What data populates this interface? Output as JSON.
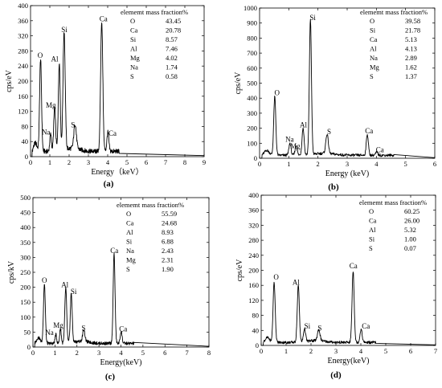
{
  "figure": {
    "panels": [
      {
        "label": "(a)",
        "table_header": "elememt mass fraction%",
        "xlabel": "Energy（keV）",
        "ylabel": "cps/eV",
        "xticks": [
          "0",
          "1",
          "2",
          "3",
          "4",
          "5",
          "6",
          "7",
          "8",
          "9"
        ],
        "yticks": [
          "0",
          "40",
          "80",
          "120",
          "160",
          "200",
          "240",
          "280",
          "320",
          "360",
          "400"
        ]
      },
      {
        "label": "(b)",
        "table_header": "elememt mass fraction%",
        "xlabel": "Energy (keV)",
        "ylabel": "cps/eV",
        "xticks": [
          "0",
          "1",
          "2",
          "3",
          "4",
          "5",
          "6"
        ],
        "yticks": [
          "0",
          "100",
          "200",
          "300",
          "400",
          "500",
          "600",
          "700",
          "800",
          "900",
          "1000"
        ]
      },
      {
        "label": "(c)",
        "table_header": "elememt mass fraction%",
        "xlabel": "Energy(keV)",
        "ylabel": "cps/kV",
        "xticks": [
          "0",
          "1",
          "2",
          "3",
          "4",
          "5",
          "6",
          "7",
          "8"
        ],
        "yticks": [
          "0",
          "50",
          "100",
          "150",
          "200",
          "250",
          "300",
          "350",
          "400",
          "450",
          "500"
        ]
      },
      {
        "label": "(d)",
        "table_header": "elememt mass fraction%",
        "xlabel": "Energy(keV)",
        "ylabel": "cps/eV",
        "xticks": [
          "0",
          "1",
          "2",
          "3",
          "4",
          "5",
          "6",
          "7"
        ],
        "yticks": [
          "0",
          "40",
          "80",
          "120",
          "160",
          "200",
          "240",
          "280",
          "320",
          "360",
          "400"
        ]
      }
    ]
  },
  "chart_data": [
    {
      "type": "line",
      "xlim": [
        0,
        9
      ],
      "ylim": [
        0,
        400
      ],
      "xlabel": "Energy（keV）",
      "ylabel": "cps/eV",
      "composition_table": {
        "header": "elememt mass fraction%",
        "rows": [
          [
            "O",
            "43.45"
          ],
          [
            "Ca",
            "20.78"
          ],
          [
            "Si",
            "8.57"
          ],
          [
            "Al",
            "7.46"
          ],
          [
            "Mg",
            "4.02"
          ],
          [
            "Na",
            "1.74"
          ],
          [
            "S",
            "0.58"
          ]
        ]
      },
      "peaks": [
        {
          "element": "O",
          "x": 0.52,
          "y": 245,
          "w": 0.07
        },
        {
          "element": "Na",
          "x": 1.04,
          "y": 45,
          "w": 0.06
        },
        {
          "element": "Mg",
          "x": 1.25,
          "y": 115,
          "w": 0.07
        },
        {
          "element": "Al",
          "x": 1.49,
          "y": 235,
          "w": 0.07
        },
        {
          "element": "Si",
          "x": 1.74,
          "y": 315,
          "w": 0.08
        },
        {
          "element": "S",
          "x": 2.31,
          "y": 65,
          "w": 0.09
        },
        {
          "element": "Ca",
          "x": 3.69,
          "y": 345,
          "w": 0.08
        },
        {
          "element": "Ca",
          "x": 4.01,
          "y": 50,
          "w": 0.07
        }
      ],
      "baseline": 14,
      "peak_labels": [
        {
          "text": "O",
          "x": 0.5,
          "y": 262
        },
        {
          "text": "Na",
          "x": 0.8,
          "y": 58
        },
        {
          "text": "Mg",
          "x": 1.05,
          "y": 130
        },
        {
          "text": "Al",
          "x": 1.25,
          "y": 252
        },
        {
          "text": "Si",
          "x": 1.75,
          "y": 330
        },
        {
          "text": "S",
          "x": 2.2,
          "y": 78
        },
        {
          "text": "Ca",
          "x": 3.78,
          "y": 358
        },
        {
          "text": "Ca",
          "x": 4.25,
          "y": 55
        }
      ]
    },
    {
      "type": "line",
      "xlim": [
        0,
        6
      ],
      "ylim": [
        0,
        1000
      ],
      "xlabel": "Energy (keV)",
      "ylabel": "cps/eV",
      "composition_table": {
        "header": "elememt mass fraction%",
        "rows": [
          [
            "O",
            "39.58"
          ],
          [
            "Si",
            "21.78"
          ],
          [
            "Ca",
            "5.13"
          ],
          [
            "Al",
            "4.13"
          ],
          [
            "Na",
            "2.89"
          ],
          [
            "Mg",
            "1.62"
          ],
          [
            "S",
            "1.37"
          ]
        ]
      },
      "peaks": [
        {
          "element": "O",
          "x": 0.52,
          "y": 390,
          "w": 0.05
        },
        {
          "element": "Na",
          "x": 1.04,
          "y": 80,
          "w": 0.05
        },
        {
          "element": "Mg",
          "x": 1.25,
          "y": 65,
          "w": 0.05
        },
        {
          "element": "Al",
          "x": 1.49,
          "y": 180,
          "w": 0.05
        },
        {
          "element": "Si",
          "x": 1.74,
          "y": 900,
          "w": 0.05
        },
        {
          "element": "S",
          "x": 2.31,
          "y": 130,
          "w": 0.06
        },
        {
          "element": "Ca",
          "x": 3.69,
          "y": 140,
          "w": 0.05
        },
        {
          "element": "Ca",
          "x": 4.01,
          "y": 20,
          "w": 0.05
        }
      ],
      "baseline": 20,
      "peak_labels": [
        {
          "text": "O",
          "x": 0.6,
          "y": 420
        },
        {
          "text": "Na",
          "x": 1.03,
          "y": 110
        },
        {
          "text": "Mg",
          "x": 1.22,
          "y": 65
        },
        {
          "text": "Al",
          "x": 1.5,
          "y": 205
        },
        {
          "text": "Si",
          "x": 1.82,
          "y": 920
        },
        {
          "text": "S",
          "x": 2.38,
          "y": 160
        },
        {
          "text": "Ca",
          "x": 3.75,
          "y": 165
        },
        {
          "text": "Ca",
          "x": 4.12,
          "y": 40
        }
      ]
    },
    {
      "type": "line",
      "xlim": [
        0,
        8
      ],
      "ylim": [
        0,
        500
      ],
      "xlabel": "Energy(keV)",
      "ylabel": "cps/kV",
      "composition_table": {
        "header": "elememt mass fraction%",
        "rows": [
          [
            "O",
            "55.59"
          ],
          [
            "Ca",
            "24.68"
          ],
          [
            "Al",
            "8.93"
          ],
          [
            "Si",
            "6.88"
          ],
          [
            "Na",
            "2.43"
          ],
          [
            "Mg",
            "2.31"
          ],
          [
            "S",
            "1.90"
          ]
        ]
      },
      "peaks": [
        {
          "element": "O",
          "x": 0.52,
          "y": 200,
          "w": 0.06
        },
        {
          "element": "Na",
          "x": 1.04,
          "y": 30,
          "w": 0.05
        },
        {
          "element": "Mg",
          "x": 1.25,
          "y": 50,
          "w": 0.05
        },
        {
          "element": "Al",
          "x": 1.49,
          "y": 185,
          "w": 0.06
        },
        {
          "element": "Si",
          "x": 1.74,
          "y": 165,
          "w": 0.06
        },
        {
          "element": "S",
          "x": 2.31,
          "y": 40,
          "w": 0.07
        },
        {
          "element": "Ca",
          "x": 3.69,
          "y": 300,
          "w": 0.06
        },
        {
          "element": "Ca",
          "x": 4.01,
          "y": 40,
          "w": 0.06
        }
      ],
      "baseline": 12,
      "peak_labels": [
        {
          "text": "O",
          "x": 0.52,
          "y": 215
        },
        {
          "text": "Na",
          "x": 0.75,
          "y": 40
        },
        {
          "text": "Mg",
          "x": 1.15,
          "y": 65
        },
        {
          "text": "Al",
          "x": 1.45,
          "y": 200
        },
        {
          "text": "Si",
          "x": 1.85,
          "y": 178
        },
        {
          "text": "S",
          "x": 2.3,
          "y": 55
        },
        {
          "text": "Ca",
          "x": 3.7,
          "y": 315
        },
        {
          "text": "Ca",
          "x": 4.1,
          "y": 52
        }
      ]
    },
    {
      "type": "line",
      "xlim": [
        0,
        7
      ],
      "ylim": [
        0,
        400
      ],
      "xlabel": "Energy(keV)",
      "ylabel": "cps/eV",
      "composition_table": {
        "header": "elememt mass fraction%",
        "rows": [
          [
            "O",
            "60.25"
          ],
          [
            "Ca",
            "26.00"
          ],
          [
            "Al",
            "5.32"
          ],
          [
            "Si",
            "1.00"
          ],
          [
            "S",
            "0.07"
          ]
        ]
      },
      "peaks": [
        {
          "element": "O",
          "x": 0.52,
          "y": 160,
          "w": 0.06
        },
        {
          "element": "Al",
          "x": 1.49,
          "y": 150,
          "w": 0.06
        },
        {
          "element": "Si",
          "x": 1.74,
          "y": 35,
          "w": 0.06
        },
        {
          "element": "S",
          "x": 2.31,
          "y": 30,
          "w": 0.07
        },
        {
          "element": "Ca",
          "x": 3.69,
          "y": 190,
          "w": 0.06
        },
        {
          "element": "Ca",
          "x": 4.01,
          "y": 35,
          "w": 0.06
        }
      ],
      "baseline": 8,
      "peak_labels": [
        {
          "text": "O",
          "x": 0.6,
          "y": 175
        },
        {
          "text": "Al",
          "x": 1.4,
          "y": 162
        },
        {
          "text": "Si",
          "x": 1.85,
          "y": 45
        },
        {
          "text": "S",
          "x": 2.35,
          "y": 40
        },
        {
          "text": "Ca",
          "x": 3.7,
          "y": 205
        },
        {
          "text": "Ca",
          "x": 4.2,
          "y": 45
        }
      ]
    }
  ]
}
